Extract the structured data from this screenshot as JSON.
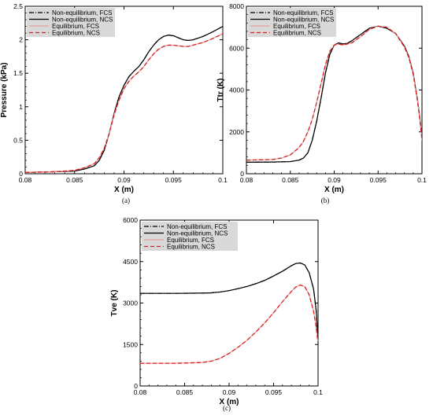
{
  "chart_data": [
    {
      "type": "line",
      "panel_label": "(a)",
      "xlabel": "X (m)",
      "ylabel": "Pressure (kPa)",
      "xlim": [
        0.08,
        0.1
      ],
      "ylim": [
        0,
        2.5
      ],
      "x_ticks": [
        0.08,
        0.085,
        0.09,
        0.095,
        0.1
      ],
      "x_tick_labels": [
        "0.08",
        "0.085",
        "0.09",
        "0.095",
        "0.1"
      ],
      "y_ticks": [
        0,
        0.5,
        1,
        1.5,
        2,
        2.5
      ],
      "y_tick_labels": [
        "0",
        "0.5",
        "1",
        "1.5",
        "2",
        "2.5"
      ],
      "legend_position": "top-left",
      "series": [
        {
          "name": "Non-equilibrium, FCS",
          "color": "#000000",
          "style": "dashdot",
          "x": [
            0.08,
            0.083,
            0.085,
            0.086,
            0.087,
            0.0875,
            0.088,
            0.0885,
            0.089,
            0.0895,
            0.09,
            0.0905,
            0.091,
            0.0915,
            0.092,
            0.0925,
            0.093,
            0.0935,
            0.094,
            0.0945,
            0.095,
            0.0955,
            0.096,
            0.0965,
            0.097,
            0.098,
            0.099,
            0.1
          ],
          "y": [
            0.02,
            0.03,
            0.04,
            0.07,
            0.12,
            0.2,
            0.35,
            0.6,
            0.9,
            1.15,
            1.32,
            1.45,
            1.53,
            1.6,
            1.7,
            1.82,
            1.92,
            2.0,
            2.05,
            2.07,
            2.06,
            2.03,
            2.0,
            1.99,
            2.0,
            2.05,
            2.12,
            2.2
          ]
        },
        {
          "name": "Non-equilibrium, NCS",
          "color": "#000000",
          "style": "solid",
          "x": [
            0.08,
            0.083,
            0.085,
            0.086,
            0.087,
            0.0875,
            0.088,
            0.0885,
            0.089,
            0.0895,
            0.09,
            0.0905,
            0.091,
            0.0915,
            0.092,
            0.0925,
            0.093,
            0.0935,
            0.094,
            0.0945,
            0.095,
            0.0955,
            0.096,
            0.0965,
            0.097,
            0.098,
            0.099,
            0.1
          ],
          "y": [
            0.02,
            0.03,
            0.04,
            0.07,
            0.12,
            0.2,
            0.35,
            0.6,
            0.9,
            1.15,
            1.32,
            1.45,
            1.53,
            1.6,
            1.7,
            1.82,
            1.92,
            2.0,
            2.05,
            2.07,
            2.06,
            2.03,
            2.0,
            1.99,
            2.0,
            2.05,
            2.12,
            2.2
          ]
        },
        {
          "name": "Equilibrium, FCS",
          "color": "#e8a0a0",
          "style": "solid",
          "x": [
            0.08,
            0.083,
            0.085,
            0.086,
            0.087,
            0.0875,
            0.088,
            0.0885,
            0.089,
            0.0895,
            0.09,
            0.0905,
            0.091,
            0.0915,
            0.092,
            0.0925,
            0.093,
            0.0935,
            0.094,
            0.0945,
            0.095,
            0.0955,
            0.096,
            0.0965,
            0.097,
            0.098,
            0.099,
            0.1
          ],
          "y": [
            0.02,
            0.03,
            0.05,
            0.09,
            0.15,
            0.24,
            0.38,
            0.6,
            0.88,
            1.1,
            1.27,
            1.38,
            1.46,
            1.52,
            1.6,
            1.7,
            1.79,
            1.86,
            1.9,
            1.92,
            1.92,
            1.91,
            1.9,
            1.9,
            1.92,
            1.96,
            2.02,
            2.09
          ]
        },
        {
          "name": "Equilibrium, NCS",
          "color": "#d62020",
          "style": "dashed",
          "x": [
            0.08,
            0.083,
            0.085,
            0.086,
            0.087,
            0.0875,
            0.088,
            0.0885,
            0.089,
            0.0895,
            0.09,
            0.0905,
            0.091,
            0.0915,
            0.092,
            0.0925,
            0.093,
            0.0935,
            0.094,
            0.0945,
            0.095,
            0.0955,
            0.096,
            0.0965,
            0.097,
            0.098,
            0.099,
            0.1
          ],
          "y": [
            0.02,
            0.03,
            0.05,
            0.09,
            0.15,
            0.24,
            0.38,
            0.6,
            0.88,
            1.1,
            1.27,
            1.38,
            1.46,
            1.52,
            1.6,
            1.7,
            1.79,
            1.86,
            1.9,
            1.92,
            1.92,
            1.91,
            1.9,
            1.9,
            1.92,
            1.96,
            2.02,
            2.09
          ]
        }
      ]
    },
    {
      "type": "line",
      "panel_label": "(b)",
      "xlabel": "X (m)",
      "ylabel": "Ttr (K)",
      "xlim": [
        0.08,
        0.1
      ],
      "ylim": [
        0,
        8000
      ],
      "x_ticks": [
        0.08,
        0.085,
        0.09,
        0.095,
        0.1
      ],
      "x_tick_labels": [
        "0.08",
        "0.085",
        "0.09",
        "0.095",
        "0.1"
      ],
      "y_ticks": [
        0,
        2000,
        4000,
        6000,
        8000
      ],
      "y_tick_labels": [
        "0",
        "2000",
        "4000",
        "6000",
        "8000"
      ],
      "legend_position": "top-left",
      "series": [
        {
          "name": "Non-equilibrium, FCS",
          "color": "#000000",
          "style": "dashdot",
          "x": [
            0.08,
            0.083,
            0.085,
            0.086,
            0.0865,
            0.087,
            0.0875,
            0.088,
            0.0885,
            0.089,
            0.0895,
            0.09,
            0.0905,
            0.091,
            0.0915,
            0.092,
            0.093,
            0.094,
            0.095,
            0.096,
            0.097,
            0.098,
            0.0985,
            0.099,
            0.0995,
            0.0998,
            0.1
          ],
          "y": [
            550,
            560,
            580,
            650,
            750,
            1000,
            1600,
            2500,
            3600,
            4800,
            5700,
            6150,
            6250,
            6200,
            6230,
            6350,
            6650,
            6950,
            7050,
            6950,
            6700,
            6100,
            5600,
            4800,
            3500,
            2500,
            1650
          ]
        },
        {
          "name": "Non-equilibrium, NCS",
          "color": "#000000",
          "style": "solid",
          "x": [
            0.08,
            0.083,
            0.085,
            0.086,
            0.0865,
            0.087,
            0.0875,
            0.088,
            0.0885,
            0.089,
            0.0895,
            0.09,
            0.0905,
            0.091,
            0.0915,
            0.092,
            0.093,
            0.094,
            0.095,
            0.096,
            0.097,
            0.098,
            0.0985,
            0.099,
            0.0995,
            0.0998,
            0.1
          ],
          "y": [
            550,
            560,
            580,
            650,
            750,
            1000,
            1600,
            2500,
            3600,
            4800,
            5700,
            6150,
            6250,
            6200,
            6230,
            6350,
            6650,
            6950,
            7050,
            6950,
            6700,
            6100,
            5600,
            4800,
            3500,
            2500,
            1650
          ]
        },
        {
          "name": "Equilibrium, FCS",
          "color": "#e8a0a0",
          "style": "solid",
          "x": [
            0.08,
            0.083,
            0.084,
            0.085,
            0.086,
            0.0865,
            0.087,
            0.0875,
            0.088,
            0.0885,
            0.089,
            0.0895,
            0.09,
            0.0905,
            0.091,
            0.092,
            0.093,
            0.094,
            0.095,
            0.096,
            0.097,
            0.098,
            0.0985,
            0.099,
            0.0995,
            0.0998,
            0.1
          ],
          "y": [
            650,
            680,
            750,
            900,
            1250,
            1550,
            2000,
            2600,
            3400,
            4300,
            5200,
            5850,
            6150,
            6200,
            6150,
            6250,
            6550,
            6900,
            7050,
            7000,
            6700,
            6050,
            5550,
            4750,
            3450,
            2450,
            1600
          ]
        },
        {
          "name": "Equilibrium, NCS",
          "color": "#d62020",
          "style": "dashed",
          "x": [
            0.08,
            0.083,
            0.084,
            0.085,
            0.086,
            0.0865,
            0.087,
            0.0875,
            0.088,
            0.0885,
            0.089,
            0.0895,
            0.09,
            0.0905,
            0.091,
            0.092,
            0.093,
            0.094,
            0.095,
            0.096,
            0.097,
            0.098,
            0.0985,
            0.099,
            0.0995,
            0.0998,
            0.1
          ],
          "y": [
            650,
            680,
            750,
            900,
            1250,
            1550,
            2000,
            2600,
            3400,
            4300,
            5200,
            5850,
            6150,
            6200,
            6150,
            6250,
            6550,
            6900,
            7050,
            7000,
            6700,
            6050,
            5550,
            4750,
            3450,
            2450,
            1600
          ]
        }
      ]
    },
    {
      "type": "line",
      "panel_label": "(c)",
      "xlabel": "X (m)",
      "ylabel": "Tve (K)",
      "xlim": [
        0.08,
        0.1
      ],
      "ylim": [
        0,
        6000
      ],
      "x_ticks": [
        0.08,
        0.085,
        0.09,
        0.095,
        0.1
      ],
      "x_tick_labels": [
        "0.08",
        "0.085",
        "0.09",
        "0.095",
        "0.1"
      ],
      "y_ticks": [
        0,
        1500,
        3000,
        4500,
        6000
      ],
      "y_tick_labels": [
        "0",
        "1500",
        "3000",
        "4500",
        "6000"
      ],
      "legend_position": "top-left",
      "series": [
        {
          "name": "Non-equilibrium, FCS",
          "color": "#000000",
          "style": "dashdot",
          "x": [
            0.08,
            0.084,
            0.087,
            0.088,
            0.089,
            0.09,
            0.091,
            0.092,
            0.093,
            0.094,
            0.095,
            0.096,
            0.097,
            0.0975,
            0.098,
            0.0985,
            0.099,
            0.0995,
            0.0998,
            0.1
          ],
          "y": [
            3350,
            3350,
            3360,
            3370,
            3400,
            3450,
            3520,
            3600,
            3700,
            3820,
            3980,
            4150,
            4350,
            4430,
            4450,
            4380,
            4100,
            3500,
            2700,
            1600
          ]
        },
        {
          "name": "Non-equilibrium, NCS",
          "color": "#000000",
          "style": "solid",
          "x": [
            0.08,
            0.084,
            0.087,
            0.088,
            0.089,
            0.09,
            0.091,
            0.092,
            0.093,
            0.094,
            0.095,
            0.096,
            0.097,
            0.0975,
            0.098,
            0.0985,
            0.099,
            0.0995,
            0.0998,
            0.1
          ],
          "y": [
            3350,
            3350,
            3360,
            3370,
            3400,
            3450,
            3520,
            3600,
            3700,
            3820,
            3980,
            4150,
            4350,
            4430,
            4450,
            4380,
            4100,
            3500,
            2700,
            1600
          ]
        },
        {
          "name": "Equilibrium, FCS",
          "color": "#e8a0a0",
          "style": "solid",
          "x": [
            0.08,
            0.084,
            0.087,
            0.088,
            0.089,
            0.09,
            0.091,
            0.092,
            0.093,
            0.094,
            0.095,
            0.096,
            0.097,
            0.0975,
            0.098,
            0.0985,
            0.099,
            0.0995,
            0.0998,
            0.1
          ],
          "y": [
            820,
            820,
            850,
            900,
            1000,
            1180,
            1400,
            1650,
            1950,
            2280,
            2650,
            3050,
            3420,
            3580,
            3650,
            3600,
            3300,
            2700,
            2100,
            1550
          ]
        },
        {
          "name": "Equilibrium, NCS",
          "color": "#d62020",
          "style": "dashed",
          "x": [
            0.08,
            0.084,
            0.087,
            0.088,
            0.089,
            0.09,
            0.091,
            0.092,
            0.093,
            0.094,
            0.095,
            0.096,
            0.097,
            0.0975,
            0.098,
            0.0985,
            0.099,
            0.0995,
            0.0998,
            0.1
          ],
          "y": [
            820,
            820,
            850,
            900,
            1000,
            1180,
            1400,
            1650,
            1950,
            2280,
            2650,
            3050,
            3420,
            3580,
            3650,
            3600,
            3300,
            2700,
            2100,
            1550
          ]
        }
      ]
    }
  ]
}
